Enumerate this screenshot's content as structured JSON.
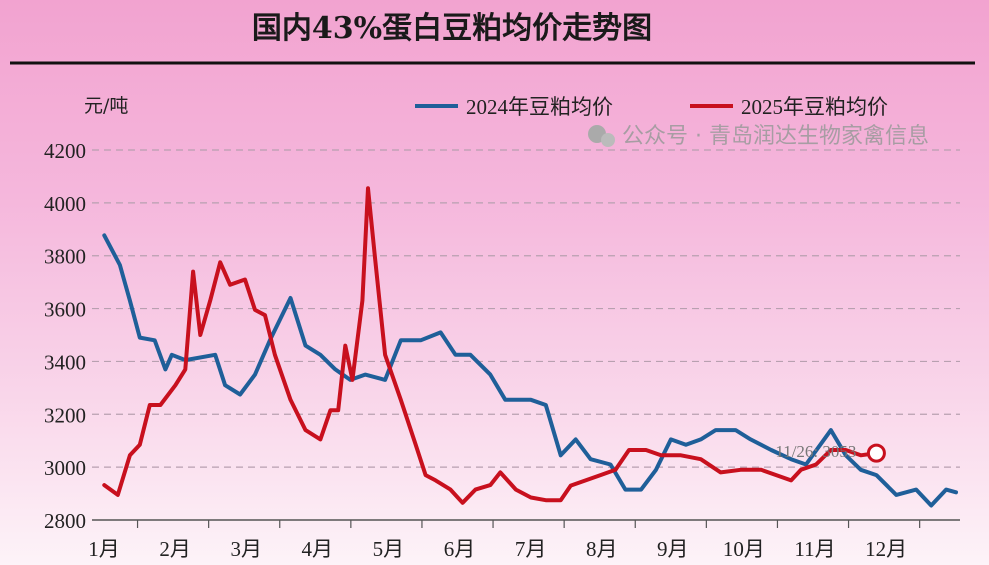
{
  "chart_data": {
    "type": "line",
    "title": "国内43%蛋白豆粕均价走势图",
    "ylabel": "元/吨",
    "xlabel": "",
    "ylim": [
      2800,
      4200
    ],
    "yticks": [
      2800,
      3000,
      3200,
      3400,
      3600,
      3800,
      4000,
      4200
    ],
    "xticks": [
      "1月",
      "2月",
      "3月",
      "4月",
      "5月",
      "6月",
      "7月",
      "8月",
      "9月",
      "10月",
      "11月",
      "12月"
    ],
    "grid": "horizontal dashed",
    "legend_position": "top-right",
    "series": [
      {
        "name": "2024年豆粕均价",
        "color": "#1f5f99",
        "points": [
          [
            1.06,
            3877
          ],
          [
            1.28,
            3765
          ],
          [
            1.42,
            3630
          ],
          [
            1.56,
            3490
          ],
          [
            1.77,
            3480
          ],
          [
            1.92,
            3370
          ],
          [
            2.01,
            3425
          ],
          [
            2.2,
            3405
          ],
          [
            2.62,
            3425
          ],
          [
            2.76,
            3310
          ],
          [
            2.97,
            3275
          ],
          [
            3.18,
            3350
          ],
          [
            3.39,
            3480
          ],
          [
            3.68,
            3640
          ],
          [
            3.89,
            3460
          ],
          [
            4.1,
            3425
          ],
          [
            4.31,
            3370
          ],
          [
            4.52,
            3330
          ],
          [
            4.73,
            3350
          ],
          [
            5.01,
            3330
          ],
          [
            5.23,
            3480
          ],
          [
            5.51,
            3480
          ],
          [
            5.79,
            3510
          ],
          [
            6.0,
            3425
          ],
          [
            6.21,
            3425
          ],
          [
            6.49,
            3350
          ],
          [
            6.7,
            3255
          ],
          [
            7.06,
            3255
          ],
          [
            7.27,
            3235
          ],
          [
            7.48,
            3045
          ],
          [
            7.69,
            3105
          ],
          [
            7.9,
            3030
          ],
          [
            8.18,
            3010
          ],
          [
            8.39,
            2915
          ],
          [
            8.61,
            2915
          ],
          [
            8.82,
            2990
          ],
          [
            9.03,
            3105
          ],
          [
            9.24,
            3085
          ],
          [
            9.45,
            3105
          ],
          [
            9.66,
            3140
          ],
          [
            9.94,
            3140
          ],
          [
            10.15,
            3105
          ],
          [
            10.44,
            3065
          ],
          [
            10.72,
            3030
          ],
          [
            10.93,
            3010
          ],
          [
            11.28,
            3140
          ],
          [
            11.49,
            3045
          ],
          [
            11.7,
            2990
          ],
          [
            11.92,
            2970
          ],
          [
            12.2,
            2895
          ],
          [
            12.48,
            2915
          ],
          [
            12.69,
            2855
          ],
          [
            12.9,
            2915
          ],
          [
            13.04,
            2905
          ]
        ]
      },
      {
        "name": "2025年豆粕均价",
        "color": "#c8101e",
        "points": [
          [
            1.06,
            2932
          ],
          [
            1.25,
            2895
          ],
          [
            1.42,
            3045
          ],
          [
            1.56,
            3085
          ],
          [
            1.7,
            3235
          ],
          [
            1.85,
            3235
          ],
          [
            2.06,
            3310
          ],
          [
            2.2,
            3370
          ],
          [
            2.31,
            3740
          ],
          [
            2.41,
            3500
          ],
          [
            2.55,
            3630
          ],
          [
            2.69,
            3775
          ],
          [
            2.83,
            3690
          ],
          [
            3.04,
            3710
          ],
          [
            3.18,
            3595
          ],
          [
            3.32,
            3575
          ],
          [
            3.46,
            3425
          ],
          [
            3.68,
            3255
          ],
          [
            3.89,
            3140
          ],
          [
            4.1,
            3105
          ],
          [
            4.24,
            3215
          ],
          [
            4.35,
            3215
          ],
          [
            4.45,
            3460
          ],
          [
            4.55,
            3330
          ],
          [
            4.69,
            3630
          ],
          [
            4.77,
            4055
          ],
          [
            4.87,
            3785
          ],
          [
            5.01,
            3425
          ],
          [
            5.23,
            3255
          ],
          [
            5.44,
            3085
          ],
          [
            5.58,
            2970
          ],
          [
            5.72,
            2950
          ],
          [
            5.93,
            2915
          ],
          [
            6.1,
            2865
          ],
          [
            6.28,
            2915
          ],
          [
            6.49,
            2932
          ],
          [
            6.63,
            2980
          ],
          [
            6.85,
            2915
          ],
          [
            7.06,
            2885
          ],
          [
            7.27,
            2875
          ],
          [
            7.48,
            2875
          ],
          [
            7.62,
            2930
          ],
          [
            7.83,
            2950
          ],
          [
            8.04,
            2970
          ],
          [
            8.25,
            2990
          ],
          [
            8.44,
            3065
          ],
          [
            8.68,
            3065
          ],
          [
            8.89,
            3045
          ],
          [
            9.17,
            3045
          ],
          [
            9.45,
            3030
          ],
          [
            9.73,
            2980
          ],
          [
            10.01,
            2990
          ],
          [
            10.3,
            2990
          ],
          [
            10.51,
            2970
          ],
          [
            10.72,
            2950
          ],
          [
            10.86,
            2990
          ],
          [
            11.07,
            3010
          ],
          [
            11.28,
            3065
          ],
          [
            11.49,
            3065
          ],
          [
            11.7,
            3045
          ],
          [
            11.92,
            3053
          ]
        ]
      }
    ],
    "annotation": {
      "text": "11/26: 3053",
      "x": 11.92,
      "y": 3053
    }
  },
  "watermark": "公众号 · 青岛润达生物家禽信息"
}
